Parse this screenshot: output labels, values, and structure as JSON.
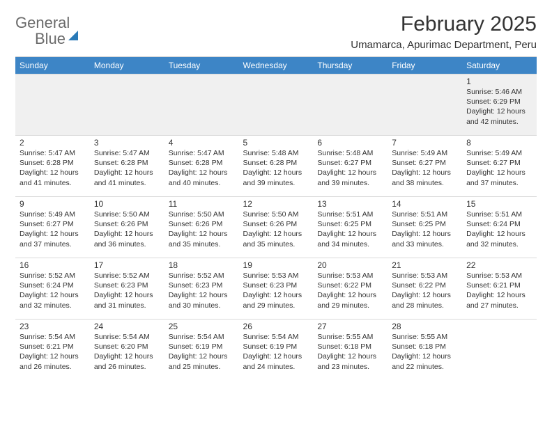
{
  "logo": {
    "word1": "General",
    "word2": "Blue"
  },
  "title": "February 2025",
  "subtitle": "Umamarca, Apurimac Department, Peru",
  "colors": {
    "header_bg": "#3d85c6",
    "header_fg": "#ffffff",
    "text": "#333333",
    "grid": "#d9d9d9",
    "week0_bg": "#f0f0f0",
    "logo_gray": "#6b6b6b",
    "logo_blue": "#2a7ab8",
    "page_bg": "#ffffff"
  },
  "typography": {
    "title_fontsize": 30,
    "subtitle_fontsize": 15,
    "dayhead_fontsize": 12,
    "daynum_fontsize": 12,
    "body_fontsize": 10.5,
    "font_family": "Arial"
  },
  "calendar": {
    "type": "table",
    "columns": [
      "Sunday",
      "Monday",
      "Tuesday",
      "Wednesday",
      "Thursday",
      "Friday",
      "Saturday"
    ],
    "weeks": [
      [
        null,
        null,
        null,
        null,
        null,
        null,
        {
          "n": "1",
          "sunrise": "5:46 AM",
          "sunset": "6:29 PM",
          "daylight": "12 hours and 42 minutes."
        }
      ],
      [
        {
          "n": "2",
          "sunrise": "5:47 AM",
          "sunset": "6:28 PM",
          "daylight": "12 hours and 41 minutes."
        },
        {
          "n": "3",
          "sunrise": "5:47 AM",
          "sunset": "6:28 PM",
          "daylight": "12 hours and 41 minutes."
        },
        {
          "n": "4",
          "sunrise": "5:47 AM",
          "sunset": "6:28 PM",
          "daylight": "12 hours and 40 minutes."
        },
        {
          "n": "5",
          "sunrise": "5:48 AM",
          "sunset": "6:28 PM",
          "daylight": "12 hours and 39 minutes."
        },
        {
          "n": "6",
          "sunrise": "5:48 AM",
          "sunset": "6:27 PM",
          "daylight": "12 hours and 39 minutes."
        },
        {
          "n": "7",
          "sunrise": "5:49 AM",
          "sunset": "6:27 PM",
          "daylight": "12 hours and 38 minutes."
        },
        {
          "n": "8",
          "sunrise": "5:49 AM",
          "sunset": "6:27 PM",
          "daylight": "12 hours and 37 minutes."
        }
      ],
      [
        {
          "n": "9",
          "sunrise": "5:49 AM",
          "sunset": "6:27 PM",
          "daylight": "12 hours and 37 minutes."
        },
        {
          "n": "10",
          "sunrise": "5:50 AM",
          "sunset": "6:26 PM",
          "daylight": "12 hours and 36 minutes."
        },
        {
          "n": "11",
          "sunrise": "5:50 AM",
          "sunset": "6:26 PM",
          "daylight": "12 hours and 35 minutes."
        },
        {
          "n": "12",
          "sunrise": "5:50 AM",
          "sunset": "6:26 PM",
          "daylight": "12 hours and 35 minutes."
        },
        {
          "n": "13",
          "sunrise": "5:51 AM",
          "sunset": "6:25 PM",
          "daylight": "12 hours and 34 minutes."
        },
        {
          "n": "14",
          "sunrise": "5:51 AM",
          "sunset": "6:25 PM",
          "daylight": "12 hours and 33 minutes."
        },
        {
          "n": "15",
          "sunrise": "5:51 AM",
          "sunset": "6:24 PM",
          "daylight": "12 hours and 32 minutes."
        }
      ],
      [
        {
          "n": "16",
          "sunrise": "5:52 AM",
          "sunset": "6:24 PM",
          "daylight": "12 hours and 32 minutes."
        },
        {
          "n": "17",
          "sunrise": "5:52 AM",
          "sunset": "6:23 PM",
          "daylight": "12 hours and 31 minutes."
        },
        {
          "n": "18",
          "sunrise": "5:52 AM",
          "sunset": "6:23 PM",
          "daylight": "12 hours and 30 minutes."
        },
        {
          "n": "19",
          "sunrise": "5:53 AM",
          "sunset": "6:23 PM",
          "daylight": "12 hours and 29 minutes."
        },
        {
          "n": "20",
          "sunrise": "5:53 AM",
          "sunset": "6:22 PM",
          "daylight": "12 hours and 29 minutes."
        },
        {
          "n": "21",
          "sunrise": "5:53 AM",
          "sunset": "6:22 PM",
          "daylight": "12 hours and 28 minutes."
        },
        {
          "n": "22",
          "sunrise": "5:53 AM",
          "sunset": "6:21 PM",
          "daylight": "12 hours and 27 minutes."
        }
      ],
      [
        {
          "n": "23",
          "sunrise": "5:54 AM",
          "sunset": "6:21 PM",
          "daylight": "12 hours and 26 minutes."
        },
        {
          "n": "24",
          "sunrise": "5:54 AM",
          "sunset": "6:20 PM",
          "daylight": "12 hours and 26 minutes."
        },
        {
          "n": "25",
          "sunrise": "5:54 AM",
          "sunset": "6:19 PM",
          "daylight": "12 hours and 25 minutes."
        },
        {
          "n": "26",
          "sunrise": "5:54 AM",
          "sunset": "6:19 PM",
          "daylight": "12 hours and 24 minutes."
        },
        {
          "n": "27",
          "sunrise": "5:55 AM",
          "sunset": "6:18 PM",
          "daylight": "12 hours and 23 minutes."
        },
        {
          "n": "28",
          "sunrise": "5:55 AM",
          "sunset": "6:18 PM",
          "daylight": "12 hours and 22 minutes."
        },
        null
      ]
    ],
    "labels": {
      "sunrise": "Sunrise:",
      "sunset": "Sunset:",
      "daylight": "Daylight:"
    }
  }
}
